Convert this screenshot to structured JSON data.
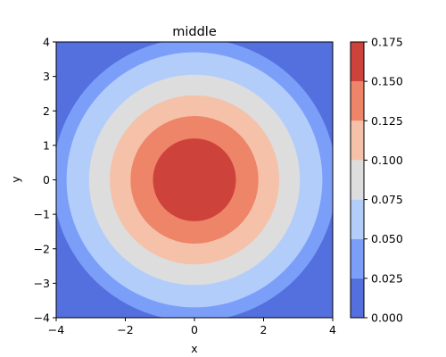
{
  "chart_data": {
    "type": "heatmap",
    "subtype": "filled-contour",
    "title": "middle",
    "xlabel": "x",
    "ylabel": "y",
    "xlim": [
      -4,
      4
    ],
    "ylim": [
      -4,
      4
    ],
    "x_ticks": [
      -4,
      -2,
      0,
      2,
      4
    ],
    "y_ticks": [
      -4,
      -3,
      -2,
      -1,
      0,
      1,
      2,
      3,
      4
    ],
    "x_tick_labels": [
      "−4",
      "−2",
      "0",
      "2",
      "4"
    ],
    "y_tick_labels": [
      "−4",
      "−3",
      "−2",
      "−1",
      "0",
      "1",
      "2",
      "3",
      "4"
    ],
    "colormap": "coolwarm",
    "grid": false,
    "levels": [
      0.0,
      0.025,
      0.05,
      0.075,
      0.1,
      0.125,
      0.15,
      0.175
    ],
    "level_colors": [
      "#5470de",
      "#7b9ff9",
      "#b3cdfb",
      "#dddddd",
      "#f5c1a9",
      "#ee8468",
      "#cd423b"
    ],
    "contour_radii": [
      {
        "level": 0.025,
        "radius": 4.1
      },
      {
        "level": 0.05,
        "radius": 3.7
      },
      {
        "level": 0.075,
        "radius": 3.05
      },
      {
        "level": 0.1,
        "radius": 2.45
      },
      {
        "level": 0.125,
        "radius": 1.85
      },
      {
        "level": 0.15,
        "radius": 1.2
      }
    ],
    "colorbar": {
      "position": "right",
      "ticks": [
        0.0,
        0.025,
        0.05,
        0.075,
        0.1,
        0.125,
        0.15,
        0.175
      ],
      "tick_labels": [
        "0.000",
        "0.025",
        "0.050",
        "0.075",
        "0.100",
        "0.125",
        "0.150",
        "0.175"
      ]
    }
  }
}
